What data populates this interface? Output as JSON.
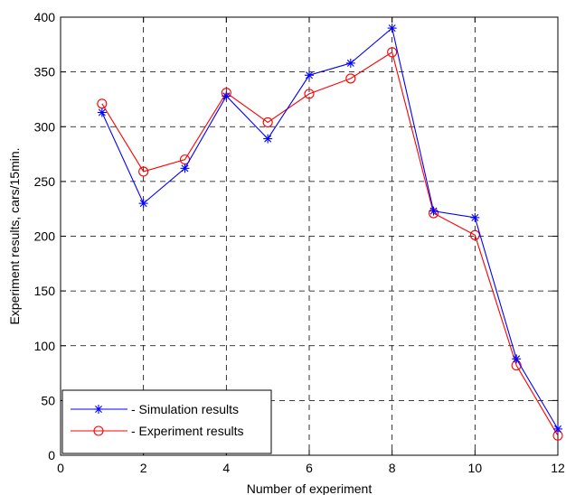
{
  "chart_data": {
    "type": "line",
    "title": "",
    "xlabel": "Number of experiment",
    "ylabel": "Experiment results, cars/15min.",
    "xlim": [
      0,
      12
    ],
    "ylim": [
      0,
      400
    ],
    "xticks": [
      0,
      2,
      4,
      6,
      8,
      10,
      12
    ],
    "yticks": [
      0,
      50,
      100,
      150,
      200,
      250,
      300,
      350,
      400
    ],
    "grid": true,
    "legend_position": "bottom-left",
    "series": [
      {
        "name": "- Simulation results",
        "color": "#0000ff",
        "marker": "asterisk",
        "x": [
          1,
          2,
          3,
          4,
          5,
          6,
          7,
          8,
          9,
          10,
          11,
          12
        ],
        "y": [
          313,
          230,
          262,
          328,
          289,
          347,
          358,
          390,
          223,
          217,
          88,
          24
        ]
      },
      {
        "name": "- Experiment results",
        "color": "#ff0000",
        "marker": "circle",
        "x": [
          1,
          2,
          3,
          4,
          5,
          6,
          7,
          8,
          9,
          10,
          11,
          12
        ],
        "y": [
          321,
          259,
          270,
          331,
          304,
          330,
          344,
          368,
          221,
          201,
          82,
          18
        ]
      }
    ]
  }
}
